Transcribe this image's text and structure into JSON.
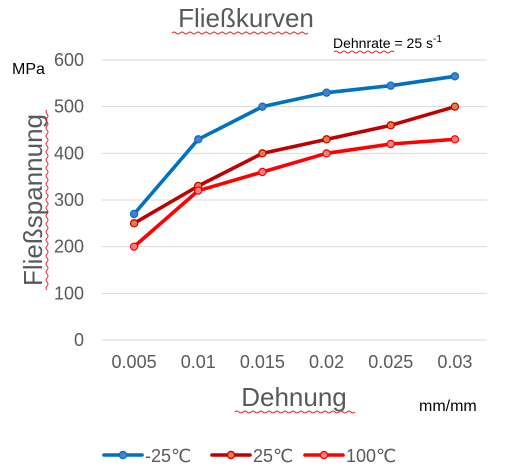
{
  "chart_data": {
    "type": "line",
    "title": "Fließkurven",
    "xlabel": "Dehnung",
    "x_unit": "mm/mm",
    "ylabel": "Fließspannung",
    "y_unit": "MPa",
    "annotation": {
      "prefix": "Dehnrate = 25 s",
      "superscript": "-1"
    },
    "categories": [
      "0.005",
      "0.01",
      "0.015",
      "0.02",
      "0.025",
      "0.03"
    ],
    "ylim": [
      0,
      600
    ],
    "yticks": [
      0,
      100,
      200,
      300,
      400,
      500,
      600
    ],
    "grid": true,
    "legend_position": "bottom",
    "series": [
      {
        "name": "-25℃",
        "color": "#0070c0",
        "marker_fill": "#4a7fd0",
        "values": [
          270,
          430,
          500,
          530,
          545,
          565
        ]
      },
      {
        "name": "25℃",
        "color": "#c00000",
        "marker_fill": "#f07840",
        "values": [
          250,
          330,
          400,
          430,
          460,
          500
        ]
      },
      {
        "name": "100℃",
        "color": "#ff0000",
        "marker_fill": "#f08080",
        "values": [
          200,
          320,
          360,
          400,
          420,
          430
        ]
      }
    ]
  }
}
